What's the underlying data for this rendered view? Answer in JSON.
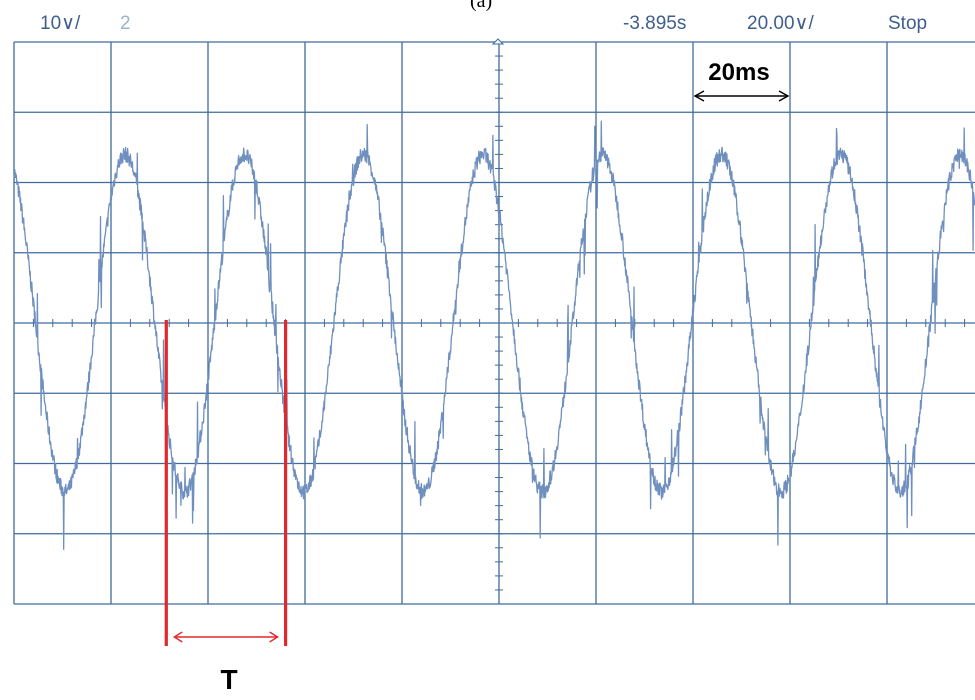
{
  "figure_label": "(a)",
  "header": {
    "ch1_scale": "10∨/",
    "ch2_label": "2",
    "time_offset": "-3.895s",
    "time_scale": "20.00∨/",
    "run_state": "Stop"
  },
  "annotations": {
    "scale_label": "20ms",
    "period_label": "T"
  },
  "colors": {
    "grid": "#3f6c9c",
    "trace": "#6f8fbe",
    "header_text": "#3f5f8c",
    "period_marker": "#e0282d"
  },
  "chart_data": {
    "type": "line",
    "title": "",
    "xlabel": "",
    "ylabel": "",
    "x_divisions": 10,
    "y_divisions": 8,
    "volts_per_div": 10,
    "ms_per_div": 20,
    "xlim_ms": [
      0,
      200
    ],
    "ylim_v": [
      -40,
      40
    ],
    "grid": true,
    "series": [
      {
        "name": "",
        "waveform": "sine",
        "amplitude_v": 24,
        "period_ms": 24.6,
        "phase_deg": 115,
        "noise": "high-frequency ripple/spikes"
      }
    ],
    "period_marker_ms": [
      31.4,
      56.0
    ]
  }
}
